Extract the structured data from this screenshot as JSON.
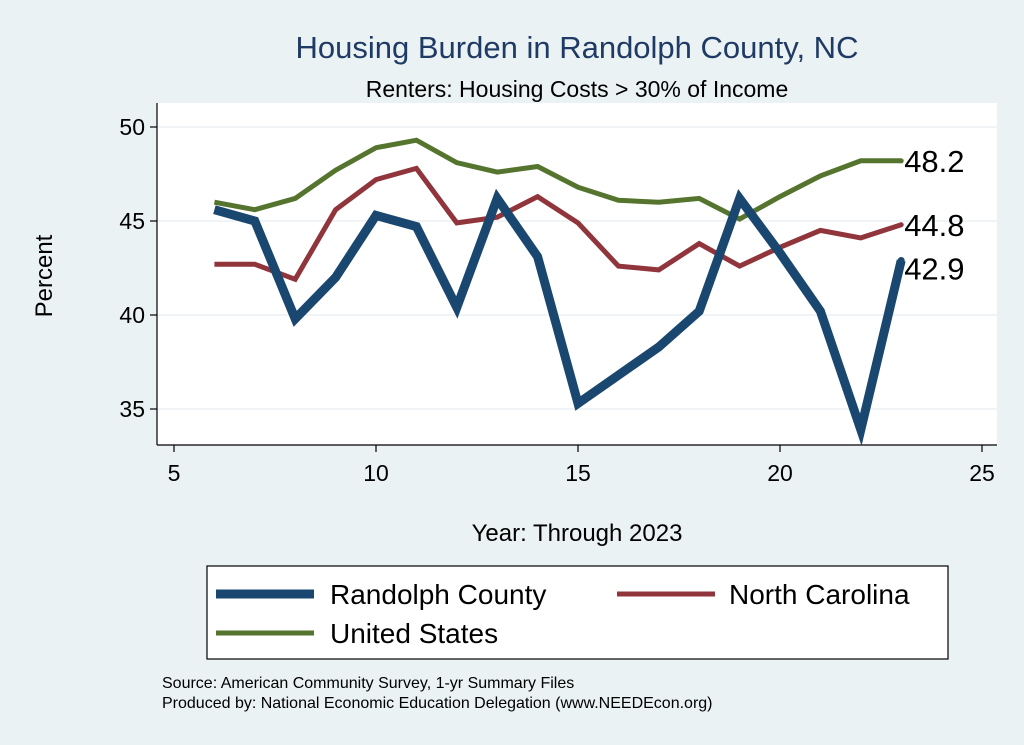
{
  "chart_data": {
    "type": "line",
    "title": "Housing Burden in Randolph County, NC",
    "subtitle": "Renters: Housing Costs > 30% of Income",
    "xlabel": "Year: Through 2023",
    "ylabel": "Percent",
    "xlim": [
      5,
      25
    ],
    "ylim": [
      33.5,
      50.5
    ],
    "x_ticks": [
      5,
      10,
      15,
      20,
      25
    ],
    "y_ticks": [
      35,
      40,
      45,
      50
    ],
    "grid": true,
    "series": [
      {
        "name": "Randolph County",
        "color": "#1a476f",
        "x": [
          6,
          7,
          8,
          9,
          10,
          11,
          12,
          13,
          14,
          15,
          16,
          17,
          18,
          19,
          20,
          21,
          22,
          23
        ],
        "values": [
          45.6,
          45.0,
          39.8,
          42.0,
          45.3,
          44.7,
          40.4,
          46.2,
          43.1,
          35.3,
          36.8,
          38.3,
          40.2,
          46.2,
          43.3,
          40.2,
          33.9,
          42.9
        ],
        "end_label": "42.9"
      },
      {
        "name": "North Carolina",
        "color": "#90353b",
        "x": [
          6,
          7,
          8,
          9,
          10,
          11,
          12,
          13,
          14,
          15,
          16,
          17,
          18,
          19,
          20,
          21,
          22,
          23
        ],
        "values": [
          42.7,
          42.7,
          41.9,
          45.6,
          47.2,
          47.8,
          44.9,
          45.2,
          46.3,
          44.9,
          42.6,
          42.4,
          43.8,
          42.6,
          43.6,
          44.5,
          44.1,
          44.8
        ],
        "end_label": "44.8"
      },
      {
        "name": "United States",
        "color": "#55752f",
        "x": [
          6,
          7,
          8,
          9,
          10,
          11,
          12,
          13,
          14,
          15,
          16,
          17,
          18,
          19,
          20,
          21,
          22,
          23
        ],
        "values": [
          46.0,
          45.6,
          46.2,
          47.7,
          48.9,
          49.3,
          48.1,
          47.6,
          47.9,
          46.8,
          46.1,
          46.0,
          46.2,
          45.1,
          46.3,
          47.4,
          48.2,
          48.2
        ],
        "end_label": "48.2"
      }
    ],
    "legend": {
      "position": "bottom",
      "entries": [
        "Randolph County",
        "North Carolina",
        "United States"
      ]
    },
    "notes": [
      "Source: American Community Survey, 1-yr Summary Files",
      "Produced by: National Economic Education Delegation (www.NEEDEcon.org)"
    ]
  }
}
